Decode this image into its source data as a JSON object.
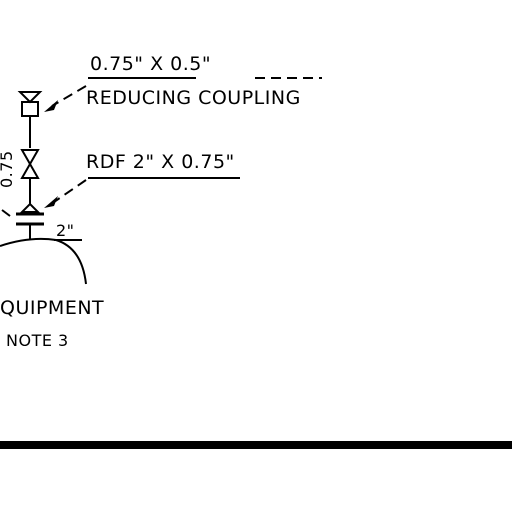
{
  "labels": {
    "coupling_size": "0.75\" X 0.5\"",
    "coupling_name": "REDUCING COUPLING",
    "rdf_size": "RDF 2\" X 0.75\"",
    "nozzle_size": "2\"",
    "vertical_dim": "0.75",
    "equipment": "QUIPMENT",
    "note": "NOTE 3"
  },
  "colors": {
    "ink": "#000000",
    "background": "#ffffff"
  }
}
